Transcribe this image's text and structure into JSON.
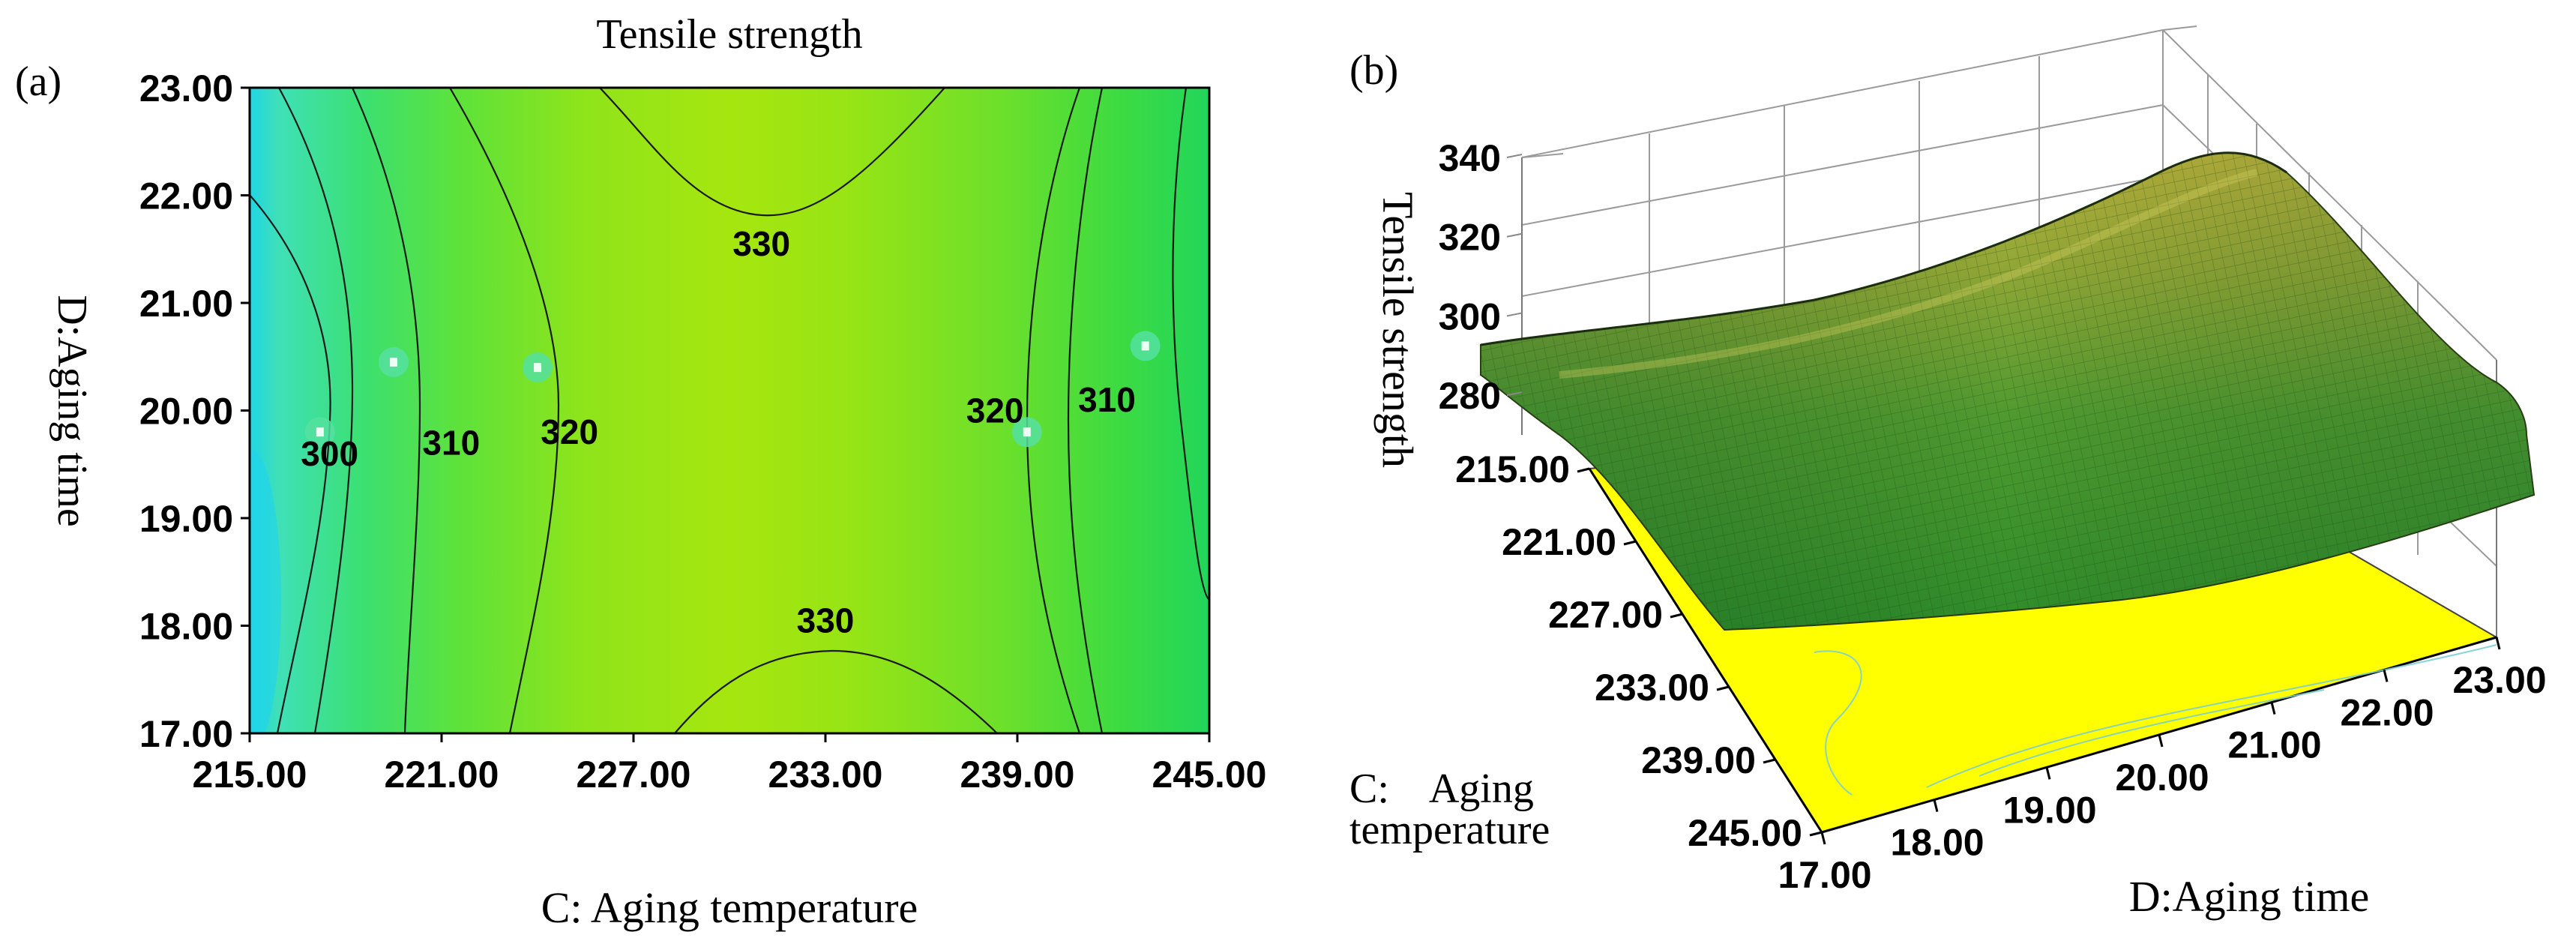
{
  "panels": {
    "a_label": "(a)",
    "b_label": "(b)"
  },
  "chart_data": [
    {
      "type": "contour",
      "panel": "(a)",
      "title": "Tensile strength",
      "xlabel": "C: Aging temperature",
      "ylabel": "D:Aging time",
      "xlim": [
        215,
        245
      ],
      "ylim": [
        17,
        23
      ],
      "x_ticks": [
        "215.00",
        "221.00",
        "227.00",
        "233.00",
        "239.00",
        "245.00"
      ],
      "y_ticks": [
        "17.00",
        "18.00",
        "19.00",
        "20.00",
        "21.00",
        "22.00",
        "23.00"
      ],
      "contour_levels": [
        300,
        310,
        320,
        330
      ],
      "contour_labels": [
        {
          "text": "300",
          "x": 217.5,
          "y": 19.6
        },
        {
          "text": "310",
          "x": 221.3,
          "y": 19.7
        },
        {
          "text": "320",
          "x": 225.0,
          "y": 19.8
        },
        {
          "text": "330",
          "x": 231.0,
          "y": 21.55
        },
        {
          "text": "330",
          "x": 233.0,
          "y": 18.05
        },
        {
          "text": "320",
          "x": 238.3,
          "y": 20.0
        },
        {
          "text": "310",
          "x": 241.8,
          "y": 20.1
        }
      ],
      "design_points": [
        {
          "x": 217.2,
          "y": 19.8
        },
        {
          "x": 219.5,
          "y": 20.45
        },
        {
          "x": 224.0,
          "y": 20.4
        },
        {
          "x": 239.3,
          "y": 19.8
        },
        {
          "x": 243.0,
          "y": 20.6
        }
      ]
    },
    {
      "type": "surface3d",
      "panel": "(b)",
      "zlabel": "Tensile strength",
      "xlabel": "C: Aging temperature",
      "ylabel": "D:Aging time",
      "x_label_line1": "C:    Aging",
      "x_label_line2": "temperature",
      "x_ticks": [
        "215.00",
        "221.00",
        "227.00",
        "233.00",
        "239.00",
        "245.00"
      ],
      "y_ticks": [
        "17.00",
        "18.00",
        "19.00",
        "20.00",
        "21.00",
        "22.00",
        "23.00"
      ],
      "z_ticks": [
        "280",
        "300",
        "320",
        "340"
      ],
      "xlim": [
        215,
        245
      ],
      "ylim": [
        17,
        23
      ],
      "zlim": [
        270,
        340
      ]
    }
  ]
}
